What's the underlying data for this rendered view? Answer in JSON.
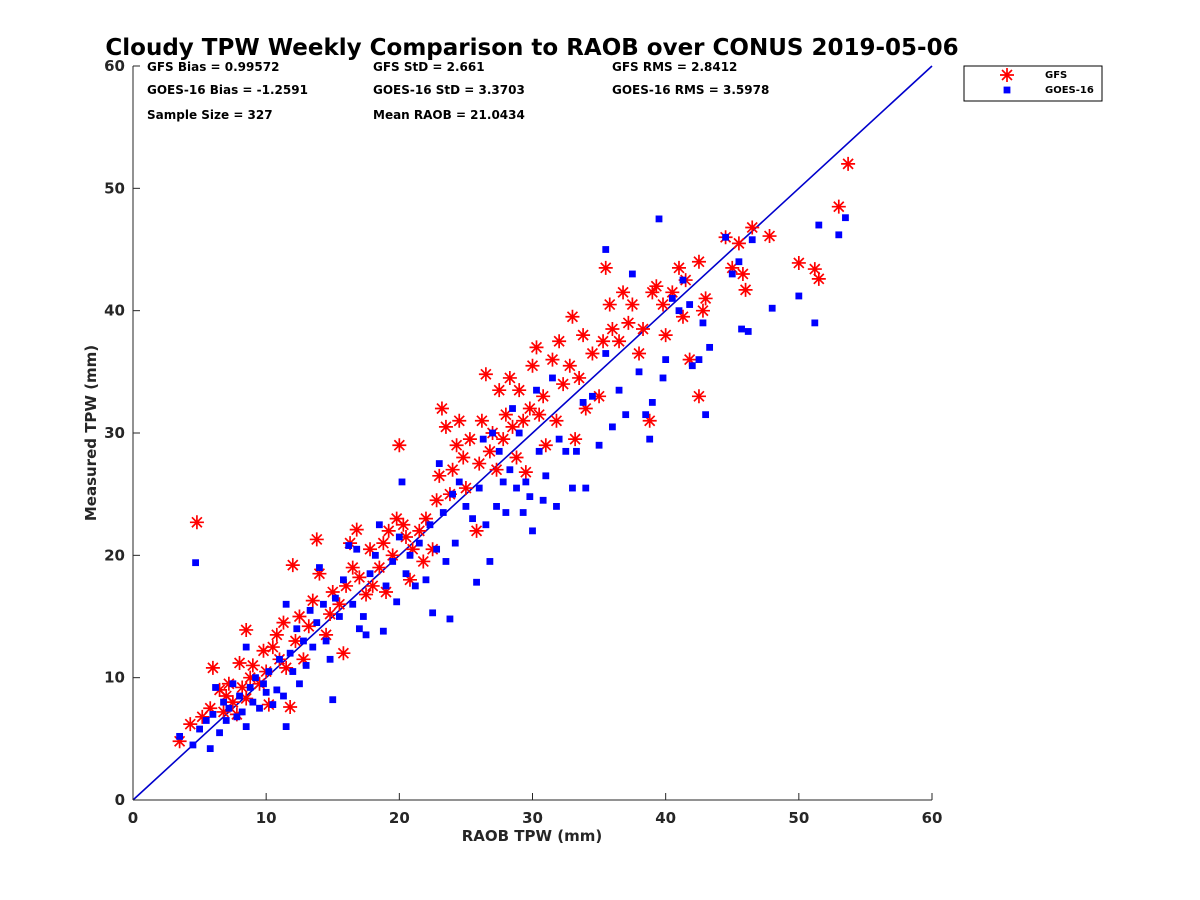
{
  "chart_data": {
    "type": "scatter",
    "title": "Cloudy TPW Weekly Comparison to RAOB over CONUS 2019-05-06",
    "xlabel": "RAOB TPW (mm)",
    "ylabel": "Measured TPW (mm)",
    "xlim": [
      0,
      60
    ],
    "ylim": [
      0,
      60
    ],
    "xticks": [
      "0",
      "10",
      "20",
      "30",
      "40",
      "50",
      "60"
    ],
    "yticks": [
      "0",
      "10",
      "20",
      "30",
      "40",
      "50",
      "60"
    ],
    "grid": false,
    "legend_position": "top-right, outside the axes",
    "stats": [
      "GFS Bias = 0.99572",
      "GFS StD = 2.661",
      "GFS RMS = 2.8412",
      "GOES-16 Bias = -1.2591",
      "GOES-16 StD = 3.3703",
      "GOES-16 RMS = 3.5978",
      "Sample Size = 327",
      "Mean RAOB = 21.0434"
    ],
    "reference_line": {
      "x": [
        0,
        60
      ],
      "y": [
        0,
        60
      ],
      "color": "#0000cc"
    },
    "series": [
      {
        "name": "GFS",
        "marker": "asterisk",
        "color": "#ff0000",
        "points": [
          [
            3.5,
            4.8
          ],
          [
            4.3,
            6.2
          ],
          [
            4.8,
            22.7
          ],
          [
            5.2,
            6.8
          ],
          [
            5.8,
            7.5
          ],
          [
            6.0,
            10.8
          ],
          [
            6.5,
            9.0
          ],
          [
            6.8,
            7.2
          ],
          [
            7.0,
            8.5
          ],
          [
            7.2,
            9.5
          ],
          [
            7.5,
            8.0
          ],
          [
            7.8,
            7.0
          ],
          [
            8.0,
            11.2
          ],
          [
            8.2,
            9.2
          ],
          [
            8.5,
            8.3
          ],
          [
            8.5,
            13.9
          ],
          [
            8.8,
            10.0
          ],
          [
            9.0,
            11.0
          ],
          [
            9.5,
            9.5
          ],
          [
            9.8,
            12.2
          ],
          [
            10.0,
            10.5
          ],
          [
            10.2,
            7.8
          ],
          [
            10.5,
            12.5
          ],
          [
            10.8,
            13.5
          ],
          [
            11.0,
            11.5
          ],
          [
            11.3,
            14.5
          ],
          [
            11.5,
            10.8
          ],
          [
            11.8,
            7.6
          ],
          [
            12.0,
            19.2
          ],
          [
            12.2,
            13.0
          ],
          [
            12.5,
            15.0
          ],
          [
            12.8,
            11.5
          ],
          [
            13.2,
            14.2
          ],
          [
            13.5,
            16.3
          ],
          [
            13.8,
            21.3
          ],
          [
            14.0,
            18.5
          ],
          [
            14.5,
            13.5
          ],
          [
            14.8,
            15.2
          ],
          [
            15.0,
            17.0
          ],
          [
            15.5,
            16.0
          ],
          [
            15.8,
            12.0
          ],
          [
            16.0,
            17.5
          ],
          [
            16.3,
            21.0
          ],
          [
            16.5,
            19.0
          ],
          [
            16.8,
            22.1
          ],
          [
            17.0,
            18.2
          ],
          [
            17.5,
            16.8
          ],
          [
            17.8,
            20.5
          ],
          [
            18.0,
            17.5
          ],
          [
            18.5,
            19.0
          ],
          [
            18.8,
            21.0
          ],
          [
            19.0,
            17.0
          ],
          [
            19.2,
            22.0
          ],
          [
            19.5,
            20.0
          ],
          [
            19.8,
            23.0
          ],
          [
            20.0,
            29.0
          ],
          [
            20.3,
            22.5
          ],
          [
            20.5,
            21.5
          ],
          [
            20.8,
            18.0
          ],
          [
            21.0,
            20.5
          ],
          [
            21.5,
            22.0
          ],
          [
            21.8,
            19.5
          ],
          [
            22.0,
            23.0
          ],
          [
            22.5,
            20.5
          ],
          [
            22.8,
            24.5
          ],
          [
            23.0,
            26.5
          ],
          [
            23.2,
            32.0
          ],
          [
            23.5,
            30.5
          ],
          [
            23.8,
            25.0
          ],
          [
            24.0,
            27.0
          ],
          [
            24.3,
            29.0
          ],
          [
            24.5,
            31.0
          ],
          [
            24.8,
            28.0
          ],
          [
            25.0,
            25.5
          ],
          [
            25.3,
            29.5
          ],
          [
            25.8,
            22.0
          ],
          [
            26.0,
            27.5
          ],
          [
            26.2,
            31.0
          ],
          [
            26.5,
            34.8
          ],
          [
            26.8,
            28.5
          ],
          [
            27.0,
            30.0
          ],
          [
            27.3,
            27.0
          ],
          [
            27.5,
            33.5
          ],
          [
            27.8,
            29.5
          ],
          [
            28.0,
            31.5
          ],
          [
            28.3,
            34.5
          ],
          [
            28.5,
            30.5
          ],
          [
            28.8,
            28.0
          ],
          [
            29.0,
            33.5
          ],
          [
            29.3,
            31.0
          ],
          [
            29.5,
            26.8
          ],
          [
            29.8,
            32.0
          ],
          [
            30.0,
            35.5
          ],
          [
            30.3,
            37.0
          ],
          [
            30.5,
            31.5
          ],
          [
            30.8,
            33.0
          ],
          [
            31.0,
            29.0
          ],
          [
            31.5,
            36.0
          ],
          [
            31.8,
            31.0
          ],
          [
            32.0,
            37.5
          ],
          [
            32.3,
            34.0
          ],
          [
            32.8,
            35.5
          ],
          [
            33.0,
            39.5
          ],
          [
            33.2,
            29.5
          ],
          [
            33.5,
            34.5
          ],
          [
            33.8,
            38.0
          ],
          [
            34.0,
            32.0
          ],
          [
            34.5,
            36.5
          ],
          [
            35.0,
            33.0
          ],
          [
            35.3,
            37.5
          ],
          [
            35.5,
            43.5
          ],
          [
            35.8,
            40.5
          ],
          [
            36.0,
            38.5
          ],
          [
            36.5,
            37.5
          ],
          [
            36.8,
            41.5
          ],
          [
            37.2,
            39.0
          ],
          [
            37.5,
            40.5
          ],
          [
            38.0,
            36.5
          ],
          [
            38.3,
            38.5
          ],
          [
            38.8,
            31.0
          ],
          [
            39.0,
            41.5
          ],
          [
            39.3,
            42.0
          ],
          [
            39.8,
            40.5
          ],
          [
            40.0,
            38.0
          ],
          [
            40.5,
            41.5
          ],
          [
            41.0,
            43.5
          ],
          [
            41.3,
            39.5
          ],
          [
            41.5,
            42.5
          ],
          [
            41.8,
            36.0
          ],
          [
            42.5,
            44.0
          ],
          [
            42.5,
            33.0
          ],
          [
            42.8,
            40.0
          ],
          [
            43.0,
            41.0
          ],
          [
            44.5,
            46.0
          ],
          [
            45.0,
            43.5
          ],
          [
            45.5,
            45.5
          ],
          [
            45.8,
            43.0
          ],
          [
            46.0,
            41.7
          ],
          [
            46.5,
            46.8
          ],
          [
            47.8,
            46.1
          ],
          [
            50.0,
            43.9
          ],
          [
            51.2,
            43.4
          ],
          [
            51.5,
            42.6
          ],
          [
            53.0,
            48.5
          ],
          [
            53.7,
            52.0
          ]
        ]
      },
      {
        "name": "GOES-16",
        "marker": "square",
        "color": "#0000ff",
        "points": [
          [
            3.5,
            5.2
          ],
          [
            4.5,
            4.5
          ],
          [
            4.7,
            19.4
          ],
          [
            5.0,
            5.8
          ],
          [
            5.5,
            6.5
          ],
          [
            5.8,
            4.2
          ],
          [
            6.0,
            7.0
          ],
          [
            6.2,
            9.2
          ],
          [
            6.5,
            5.5
          ],
          [
            6.8,
            8.0
          ],
          [
            7.0,
            6.5
          ],
          [
            7.2,
            7.5
          ],
          [
            7.5,
            9.5
          ],
          [
            7.8,
            6.8
          ],
          [
            8.0,
            8.5
          ],
          [
            8.2,
            7.2
          ],
          [
            8.5,
            12.5
          ],
          [
            8.5,
            6.0
          ],
          [
            8.8,
            9.2
          ],
          [
            9.0,
            8.0
          ],
          [
            9.2,
            10.0
          ],
          [
            9.5,
            7.5
          ],
          [
            9.8,
            9.5
          ],
          [
            10.0,
            8.8
          ],
          [
            10.2,
            10.5
          ],
          [
            10.5,
            7.8
          ],
          [
            10.8,
            9.0
          ],
          [
            11.0,
            11.5
          ],
          [
            11.3,
            8.5
          ],
          [
            11.5,
            16.0
          ],
          [
            11.5,
            6.0
          ],
          [
            11.8,
            12.0
          ],
          [
            12.0,
            10.5
          ],
          [
            12.3,
            14.0
          ],
          [
            12.5,
            9.5
          ],
          [
            12.8,
            13.0
          ],
          [
            13.0,
            11.0
          ],
          [
            13.3,
            15.5
          ],
          [
            13.5,
            12.5
          ],
          [
            13.8,
            14.5
          ],
          [
            14.0,
            19.0
          ],
          [
            14.3,
            16.0
          ],
          [
            14.5,
            13.0
          ],
          [
            14.8,
            11.5
          ],
          [
            15.0,
            8.2
          ],
          [
            15.2,
            16.5
          ],
          [
            15.5,
            15.0
          ],
          [
            15.8,
            18.0
          ],
          [
            16.2,
            20.8
          ],
          [
            16.5,
            16.0
          ],
          [
            16.8,
            20.5
          ],
          [
            17.0,
            14.0
          ],
          [
            17.3,
            15.0
          ],
          [
            17.5,
            13.5
          ],
          [
            17.8,
            18.5
          ],
          [
            18.2,
            20.0
          ],
          [
            18.5,
            22.5
          ],
          [
            18.8,
            13.8
          ],
          [
            19.0,
            17.5
          ],
          [
            19.5,
            19.5
          ],
          [
            19.8,
            16.2
          ],
          [
            20.0,
            21.5
          ],
          [
            20.2,
            26.0
          ],
          [
            20.5,
            18.5
          ],
          [
            20.8,
            20.0
          ],
          [
            21.2,
            17.5
          ],
          [
            21.5,
            21.0
          ],
          [
            22.0,
            18.0
          ],
          [
            22.3,
            22.5
          ],
          [
            22.5,
            15.3
          ],
          [
            22.8,
            20.5
          ],
          [
            23.0,
            27.5
          ],
          [
            23.3,
            23.5
          ],
          [
            23.5,
            19.5
          ],
          [
            23.8,
            14.8
          ],
          [
            24.0,
            25.0
          ],
          [
            24.2,
            21.0
          ],
          [
            24.5,
            26.0
          ],
          [
            25.0,
            24.0
          ],
          [
            25.5,
            23.0
          ],
          [
            25.8,
            17.8
          ],
          [
            26.0,
            25.5
          ],
          [
            26.3,
            29.5
          ],
          [
            26.5,
            22.5
          ],
          [
            26.8,
            19.5
          ],
          [
            27.0,
            30.0
          ],
          [
            27.3,
            24.0
          ],
          [
            27.5,
            28.5
          ],
          [
            27.8,
            26.0
          ],
          [
            28.0,
            23.5
          ],
          [
            28.3,
            27.0
          ],
          [
            28.5,
            32.0
          ],
          [
            28.8,
            25.5
          ],
          [
            29.0,
            30.0
          ],
          [
            29.3,
            23.5
          ],
          [
            29.5,
            26.0
          ],
          [
            29.8,
            24.8
          ],
          [
            30.0,
            22.0
          ],
          [
            30.3,
            33.5
          ],
          [
            30.5,
            28.5
          ],
          [
            30.8,
            24.5
          ],
          [
            31.0,
            26.5
          ],
          [
            31.5,
            34.5
          ],
          [
            31.8,
            24.0
          ],
          [
            32.0,
            29.5
          ],
          [
            32.5,
            28.5
          ],
          [
            33.0,
            25.5
          ],
          [
            33.3,
            28.5
          ],
          [
            33.8,
            32.5
          ],
          [
            34.0,
            25.5
          ],
          [
            34.5,
            33.0
          ],
          [
            35.0,
            29.0
          ],
          [
            35.5,
            45.0
          ],
          [
            35.5,
            36.5
          ],
          [
            36.0,
            30.5
          ],
          [
            36.5,
            33.5
          ],
          [
            37.0,
            31.5
          ],
          [
            37.5,
            43.0
          ],
          [
            38.0,
            35.0
          ],
          [
            38.5,
            31.5
          ],
          [
            38.8,
            29.5
          ],
          [
            39.0,
            32.5
          ],
          [
            39.5,
            47.5
          ],
          [
            39.8,
            34.5
          ],
          [
            40.0,
            36.0
          ],
          [
            40.5,
            41.0
          ],
          [
            41.0,
            40.0
          ],
          [
            41.3,
            42.5
          ],
          [
            41.8,
            40.5
          ],
          [
            42.0,
            35.5
          ],
          [
            42.5,
            36.0
          ],
          [
            42.8,
            39.0
          ],
          [
            43.0,
            31.5
          ],
          [
            43.3,
            37.0
          ],
          [
            44.5,
            46.0
          ],
          [
            45.0,
            43.0
          ],
          [
            45.5,
            44.0
          ],
          [
            45.7,
            38.5
          ],
          [
            46.2,
            38.3
          ],
          [
            46.5,
            45.8
          ],
          [
            48.0,
            40.2
          ],
          [
            50.0,
            41.2
          ],
          [
            51.2,
            39.0
          ],
          [
            51.5,
            47.0
          ],
          [
            53.0,
            46.2
          ],
          [
            53.5,
            47.6
          ]
        ]
      }
    ]
  }
}
